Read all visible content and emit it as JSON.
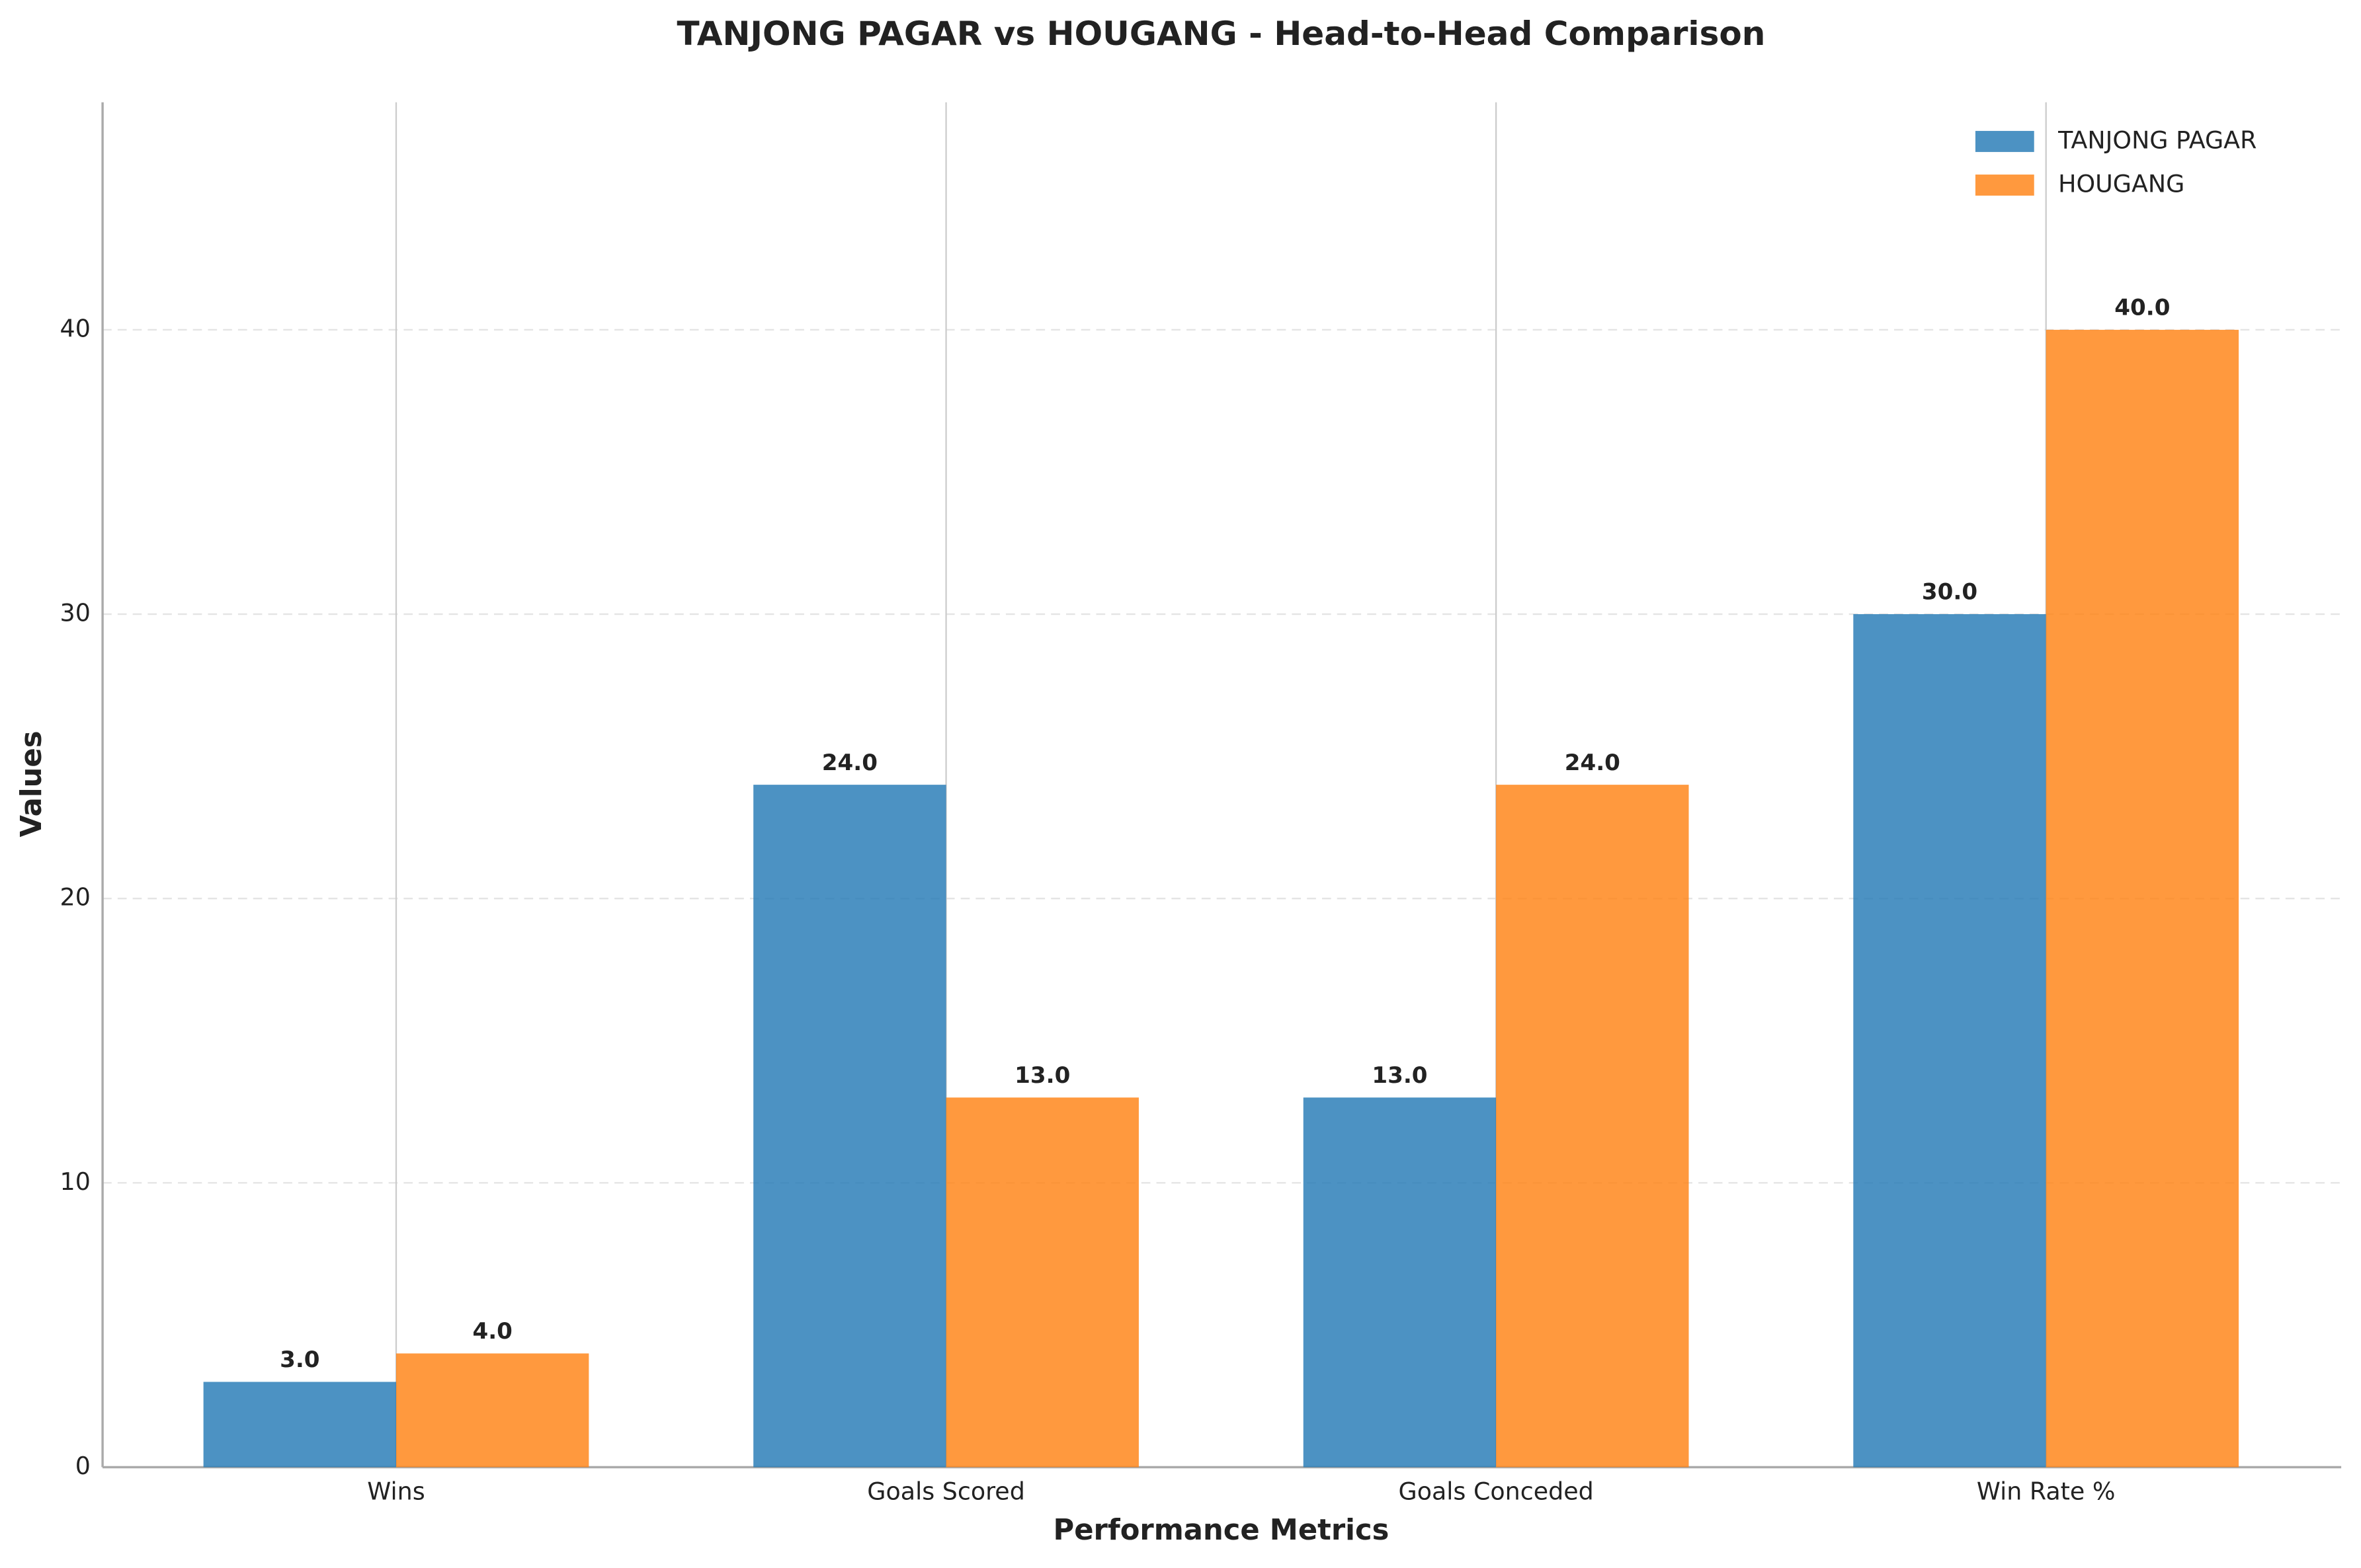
{
  "chart_data": {
    "type": "bar",
    "title": "TANJONG PAGAR vs HOUGANG - Head-to-Head Comparison",
    "x_label": "Performance Metrics",
    "y_label": "Values",
    "categories": [
      "Wins",
      "Goals Scored",
      "Goals Conceded",
      "Win Rate %"
    ],
    "series": [
      {
        "name": "TANJONG PAGAR",
        "color": "#1f77b4",
        "values": [
          3,
          24,
          13,
          30
        ],
        "value_labels": [
          "3.0",
          "24.0",
          "13.0",
          "30.0"
        ]
      },
      {
        "name": "HOUGANG",
        "color": "#ff7f0e",
        "values": [
          4,
          13,
          24,
          40
        ],
        "value_labels": [
          "4.0",
          "13.0",
          "24.0",
          "40.0"
        ]
      }
    ],
    "ylim": [
      0,
      48
    ],
    "yticks": [
      0,
      10,
      20,
      30,
      40
    ],
    "grid": true,
    "legend": "upper right"
  }
}
